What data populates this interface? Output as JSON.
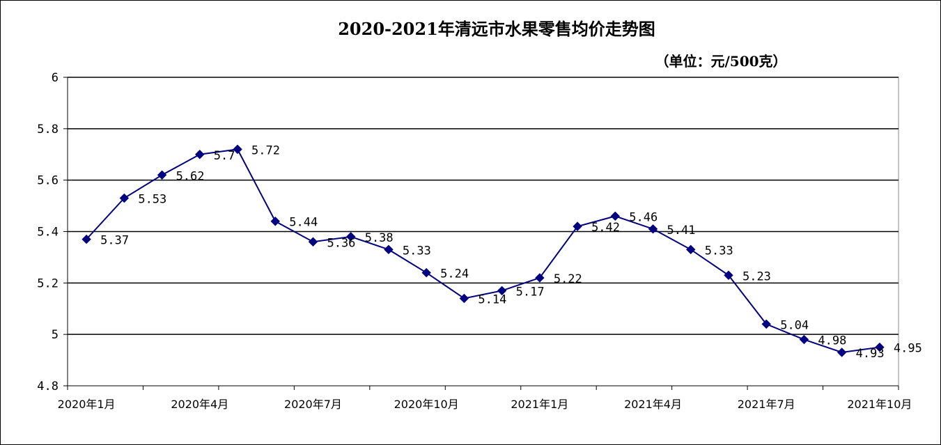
{
  "chart_data": {
    "type": "line",
    "title": "2020-2021年清远市水果零售均价走势图",
    "unit_label": "（单位：元/500克）",
    "ylim": [
      4.8,
      6
    ],
    "yticks": [
      "4.8",
      "5",
      "5.2",
      "5.4",
      "5.6",
      "5.8",
      "6"
    ],
    "grid": true,
    "legend": "none",
    "color": "#000080",
    "x_tick_labels": [
      "2020年1月",
      "2020年4月",
      "2020年7月",
      "2020年10月",
      "2021年1月",
      "2021年4月",
      "2021年7月",
      "2021年10月"
    ],
    "points": [
      {
        "value": 5.37,
        "label": "5.37"
      },
      {
        "value": 5.53,
        "label": "5.53"
      },
      {
        "value": 5.62,
        "label": "5.62"
      },
      {
        "value": 5.7,
        "label": "5.7"
      },
      {
        "value": 5.72,
        "label": "5.72"
      },
      {
        "value": 5.44,
        "label": "5.44"
      },
      {
        "value": 5.36,
        "label": "5.36"
      },
      {
        "value": 5.38,
        "label": "5.38"
      },
      {
        "value": 5.33,
        "label": "5.33"
      },
      {
        "value": 5.24,
        "label": "5.24"
      },
      {
        "value": 5.14,
        "label": "5.14"
      },
      {
        "value": 5.17,
        "label": "5.17"
      },
      {
        "value": 5.22,
        "label": "5.22"
      },
      {
        "value": 5.42,
        "label": "5.42"
      },
      {
        "value": 5.46,
        "label": "5.46"
      },
      {
        "value": 5.41,
        "label": "5.41"
      },
      {
        "value": 5.33,
        "label": "5.33"
      },
      {
        "value": 5.23,
        "label": "5.23"
      },
      {
        "value": 5.04,
        "label": "5.04"
      },
      {
        "value": 4.98,
        "label": "4.98"
      },
      {
        "value": 4.93,
        "label": "4.93"
      },
      {
        "value": 4.95,
        "label": "4.95"
      }
    ]
  }
}
